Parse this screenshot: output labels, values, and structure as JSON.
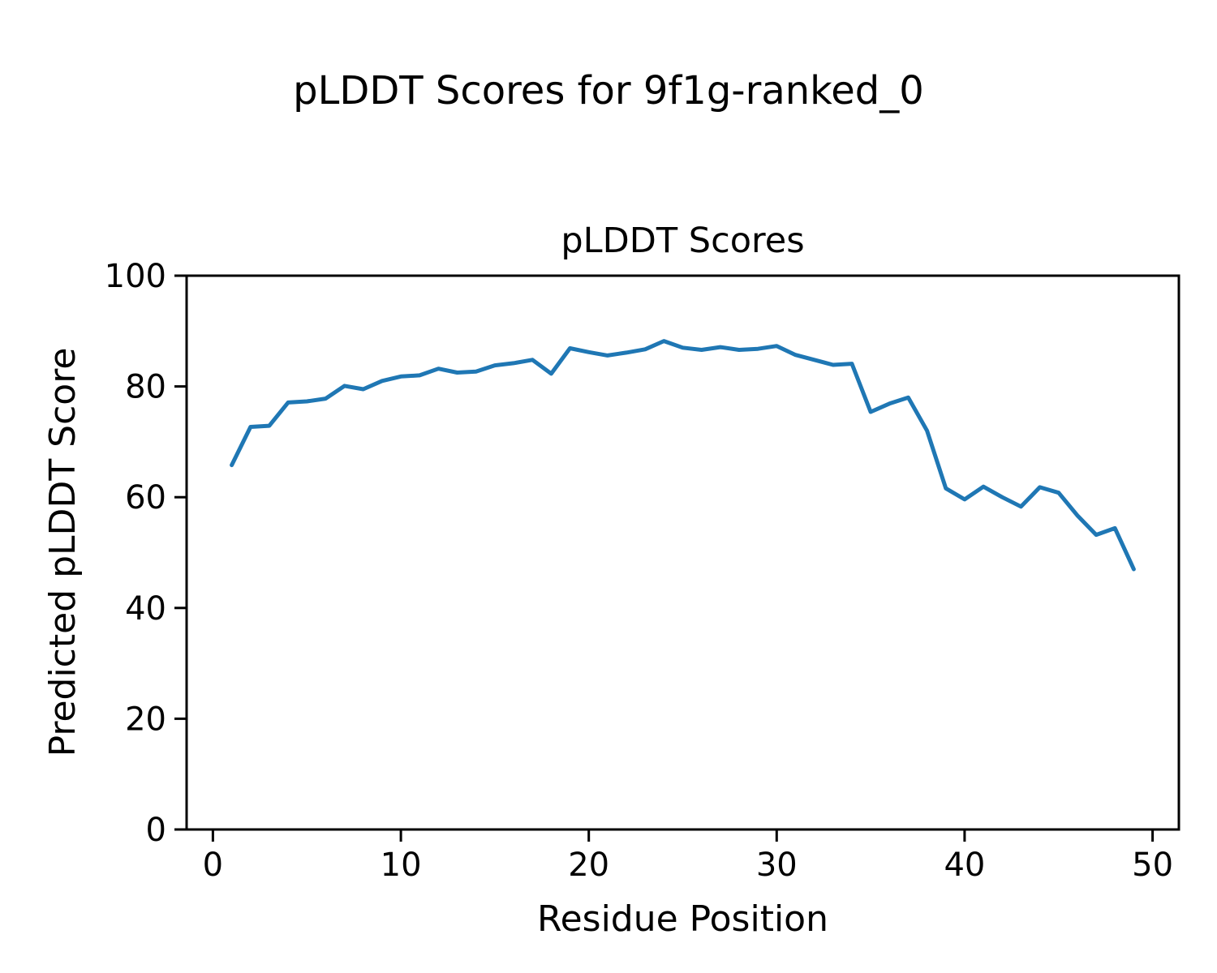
{
  "figure": {
    "suptitle": "pLDDT Scores for 9f1g-ranked_0",
    "background": "#ffffff"
  },
  "chart_data": {
    "type": "line",
    "title": "pLDDT Scores",
    "xlabel": "Residue Position",
    "ylabel": "Predicted pLDDT Score",
    "x": [
      1,
      2,
      3,
      4,
      5,
      6,
      7,
      8,
      9,
      10,
      11,
      12,
      13,
      14,
      15,
      16,
      17,
      18,
      19,
      20,
      21,
      22,
      23,
      24,
      25,
      26,
      27,
      28,
      29,
      30,
      31,
      32,
      33,
      34,
      35,
      36,
      37,
      38,
      39,
      40,
      41,
      42,
      43,
      44,
      45,
      46,
      47,
      48,
      49
    ],
    "y": [
      65.8,
      72.7,
      72.9,
      77.1,
      77.3,
      77.8,
      80.1,
      79.5,
      81.0,
      81.8,
      82.0,
      83.2,
      82.5,
      82.7,
      83.8,
      84.2,
      84.8,
      82.3,
      86.9,
      86.2,
      85.6,
      86.1,
      86.7,
      88.2,
      87.0,
      86.6,
      87.1,
      86.6,
      86.8,
      87.3,
      85.7,
      84.8,
      83.9,
      84.1,
      75.4,
      76.9,
      78.0,
      72.0,
      61.6,
      59.6,
      61.9,
      60.0,
      58.3,
      61.8,
      60.8,
      56.7,
      53.2,
      54.4,
      47.0
    ],
    "xlim": [
      -1.4,
      51.4
    ],
    "ylim": [
      0,
      100
    ],
    "xticks": [
      0,
      10,
      20,
      30,
      40,
      50
    ],
    "yticks": [
      0,
      20,
      40,
      60,
      80,
      100
    ],
    "grid": false,
    "legend_position": "none",
    "line_color": "#1f77b4",
    "axis_color": "#000000"
  }
}
